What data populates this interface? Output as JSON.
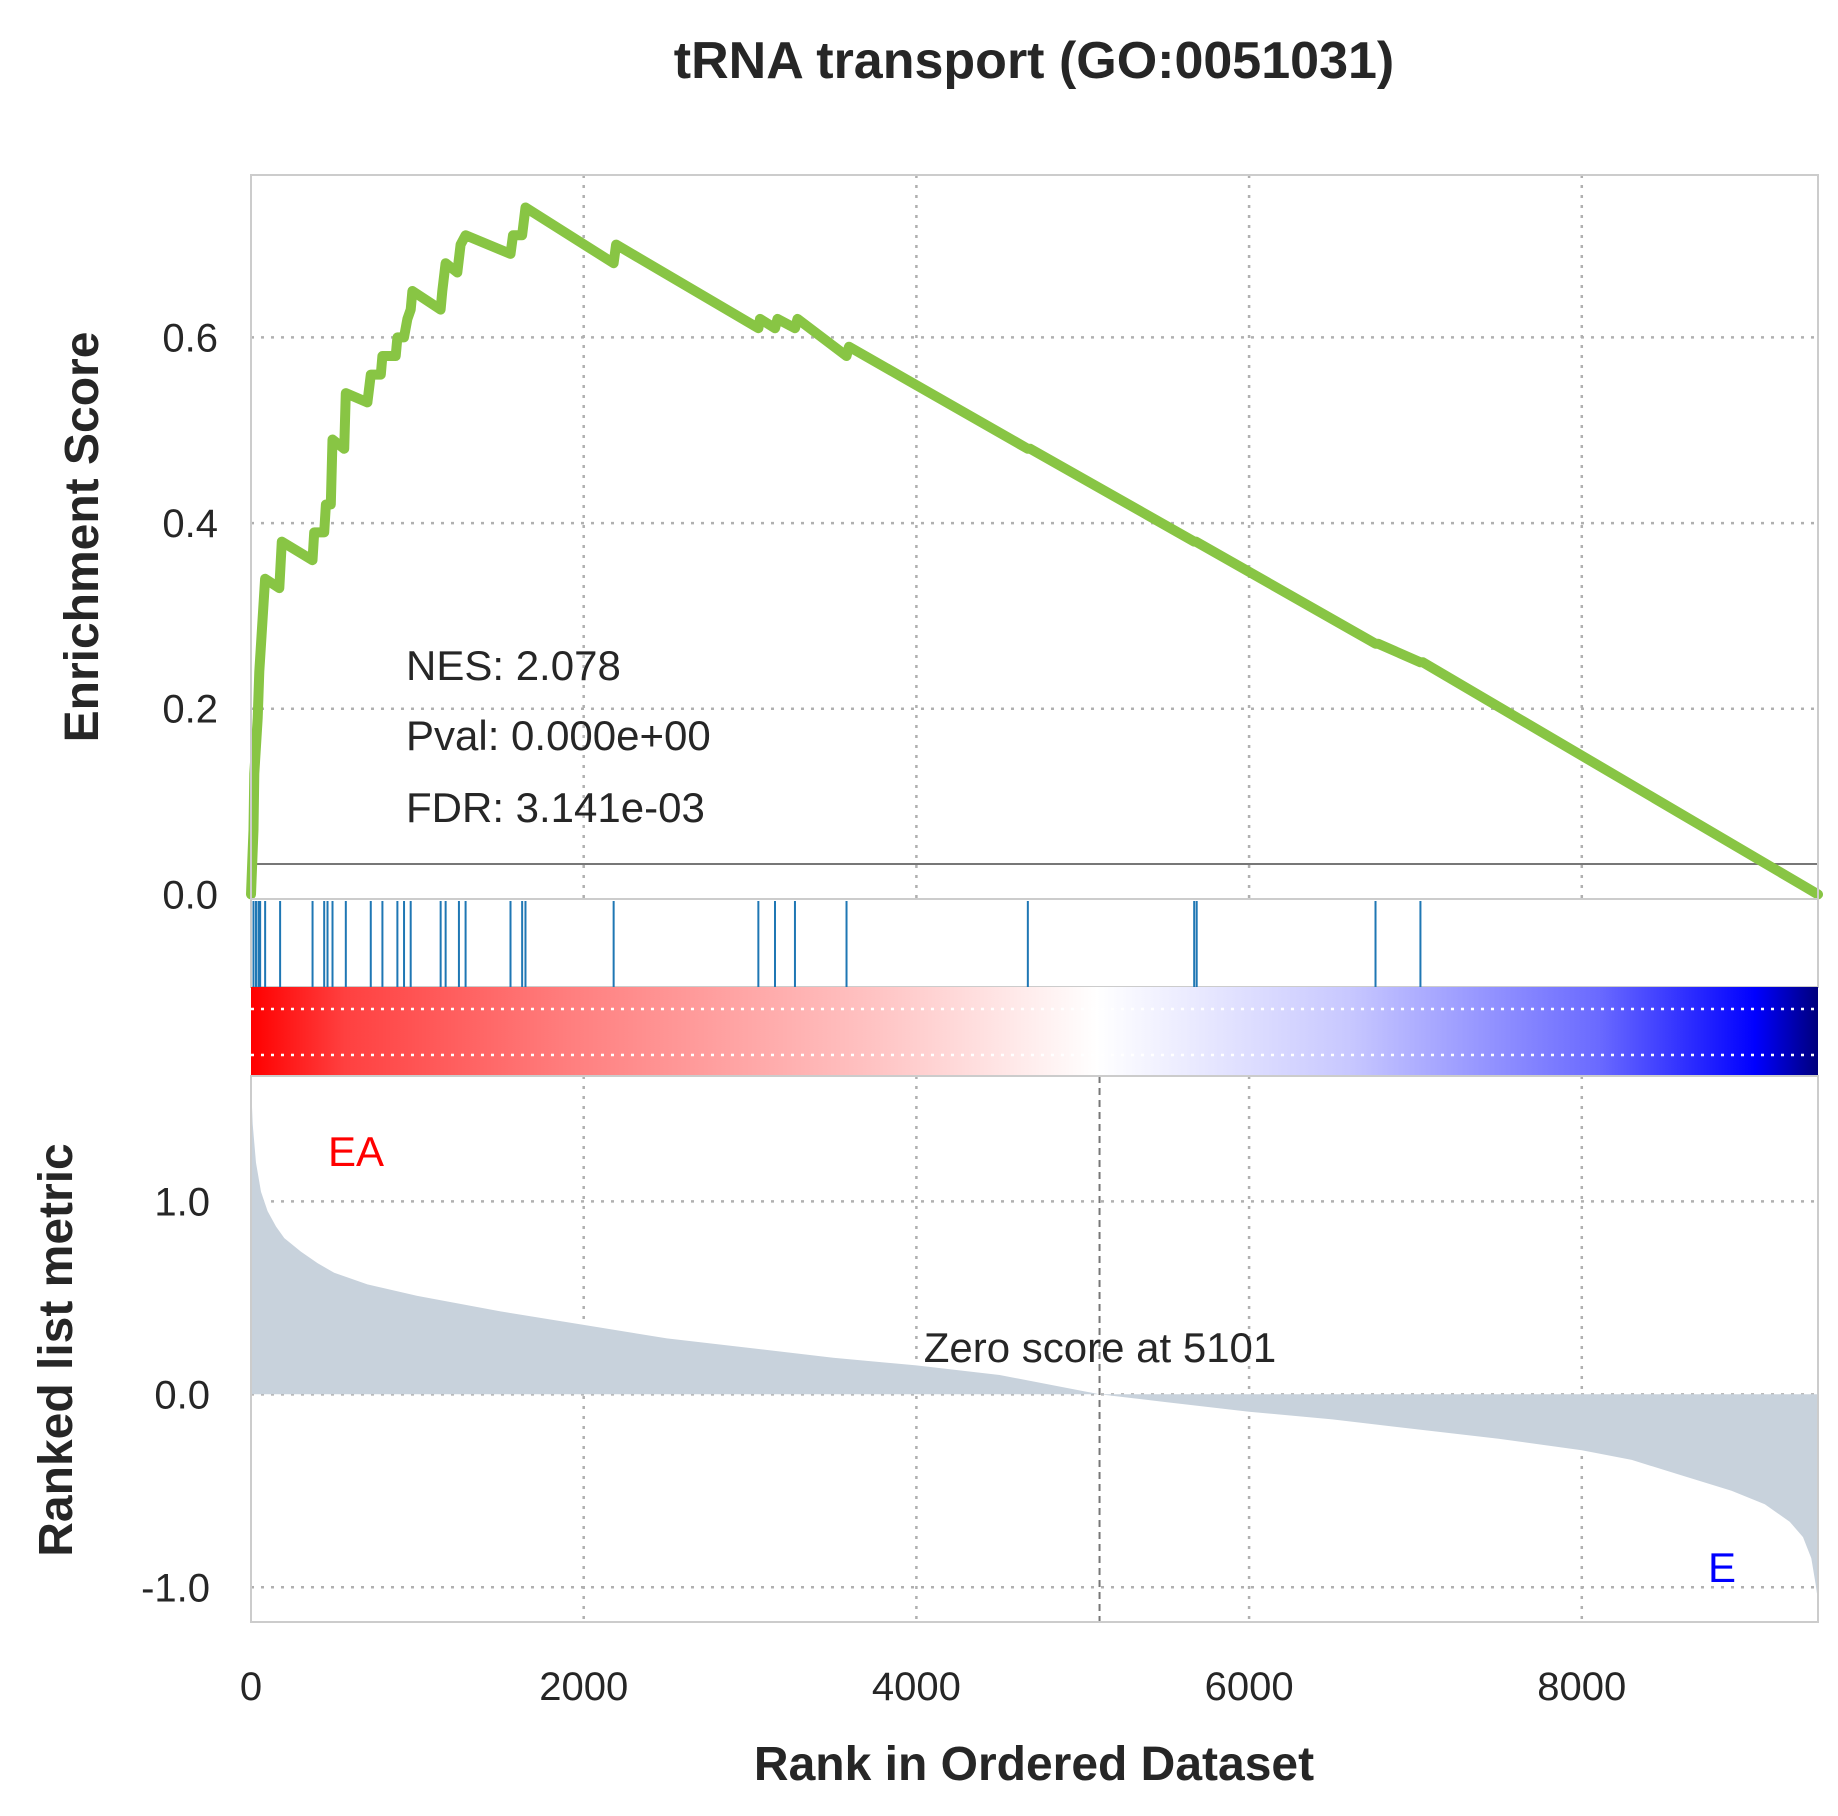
{
  "chart_data": {
    "type": "line",
    "title": "tRNA transport (GO:0051031)",
    "xlabel": "Rank in Ordered Dataset",
    "xlim": [
      0,
      9420
    ],
    "x_ticks": [
      "0",
      "2000",
      "4000",
      "6000",
      "8000"
    ],
    "x_tick_values": [
      0,
      2000,
      4000,
      6000,
      8000
    ],
    "grid": true,
    "enrichment": {
      "ylabel": "Enrichment Score",
      "ylim": [
        -0.005,
        0.775
      ],
      "y_ticks": [
        "0.0",
        "0.2",
        "0.4",
        "0.6"
      ],
      "y_tick_values": [
        0,
        0.2,
        0.4,
        0.6
      ],
      "color": "#88c544",
      "points": [
        [
          0,
          0.0
        ],
        [
          15,
          0.07
        ],
        [
          20,
          0.13
        ],
        [
          40,
          0.19
        ],
        [
          50,
          0.24
        ],
        [
          85,
          0.34
        ],
        [
          170,
          0.33
        ],
        [
          185,
          0.38
        ],
        [
          370,
          0.36
        ],
        [
          380,
          0.39
        ],
        [
          440,
          0.39
        ],
        [
          450,
          0.42
        ],
        [
          480,
          0.42
        ],
        [
          490,
          0.49
        ],
        [
          560,
          0.48
        ],
        [
          570,
          0.54
        ],
        [
          700,
          0.53
        ],
        [
          720,
          0.56
        ],
        [
          780,
          0.56
        ],
        [
          790,
          0.58
        ],
        [
          870,
          0.58
        ],
        [
          880,
          0.6
        ],
        [
          920,
          0.6
        ],
        [
          940,
          0.62
        ],
        [
          960,
          0.63
        ],
        [
          970,
          0.65
        ],
        [
          1140,
          0.63
        ],
        [
          1150,
          0.65
        ],
        [
          1170,
          0.68
        ],
        [
          1240,
          0.67
        ],
        [
          1260,
          0.7
        ],
        [
          1290,
          0.71
        ],
        [
          1560,
          0.69
        ],
        [
          1575,
          0.71
        ],
        [
          1630,
          0.71
        ],
        [
          1650,
          0.74
        ],
        [
          2180,
          0.68
        ],
        [
          2195,
          0.7
        ],
        [
          3050,
          0.61
        ],
        [
          3060,
          0.62
        ],
        [
          3150,
          0.61
        ],
        [
          3165,
          0.62
        ],
        [
          3270,
          0.61
        ],
        [
          3285,
          0.62
        ],
        [
          3580,
          0.58
        ],
        [
          3595,
          0.59
        ],
        [
          4670,
          0.48
        ],
        [
          4685,
          0.48
        ],
        [
          5670,
          0.38
        ],
        [
          5680,
          0.38
        ],
        [
          6760,
          0.27
        ],
        [
          6775,
          0.27
        ],
        [
          7030,
          0.25
        ],
        [
          7045,
          0.25
        ],
        [
          9420,
          0.0
        ]
      ]
    },
    "hits": [
      15,
      30,
      45,
      55,
      85,
      175,
      370,
      440,
      460,
      490,
      570,
      720,
      790,
      880,
      920,
      960,
      1140,
      1170,
      1250,
      1290,
      1560,
      1630,
      1650,
      2180,
      3050,
      3150,
      3270,
      3580,
      4670,
      5670,
      5685,
      6760,
      7030
    ],
    "hit_color": "#1f77b4",
    "ranked_metric": {
      "ylabel": "Ranked list metric",
      "ylim": [
        -1.18,
        1.65
      ],
      "y_ticks": [
        "1.0",
        "0.0",
        "-1.0"
      ],
      "y_tick_values": [
        1,
        0,
        -1
      ],
      "fill_color": "#c8d2dc",
      "points": [
        [
          0,
          1.62
        ],
        [
          10,
          1.4
        ],
        [
          30,
          1.2
        ],
        [
          60,
          1.05
        ],
        [
          100,
          0.95
        ],
        [
          150,
          0.87
        ],
        [
          200,
          0.81
        ],
        [
          300,
          0.74
        ],
        [
          400,
          0.68
        ],
        [
          500,
          0.63
        ],
        [
          700,
          0.57
        ],
        [
          1000,
          0.51
        ],
        [
          1500,
          0.43
        ],
        [
          2000,
          0.36
        ],
        [
          2500,
          0.29
        ],
        [
          3000,
          0.24
        ],
        [
          3500,
          0.19
        ],
        [
          4000,
          0.15
        ],
        [
          4500,
          0.1
        ],
        [
          5101,
          0.0
        ],
        [
          5500,
          -0.04
        ],
        [
          6000,
          -0.09
        ],
        [
          6500,
          -0.13
        ],
        [
          7000,
          -0.18
        ],
        [
          7500,
          -0.23
        ],
        [
          8000,
          -0.29
        ],
        [
          8300,
          -0.34
        ],
        [
          8600,
          -0.42
        ],
        [
          8900,
          -0.5
        ],
        [
          9100,
          -0.57
        ],
        [
          9250,
          -0.66
        ],
        [
          9330,
          -0.74
        ],
        [
          9380,
          -0.85
        ],
        [
          9405,
          -0.98
        ],
        [
          9420,
          -1.07
        ]
      ],
      "zero_cross": 5101,
      "zero_label": "Zero score at 5101",
      "pos_label": "EA",
      "neg_label": "E"
    },
    "stats": {
      "nes": "NES: 2.078",
      "pval": "Pval: 0.000e+00",
      "fdr": "FDR: 3.141e-03"
    }
  }
}
